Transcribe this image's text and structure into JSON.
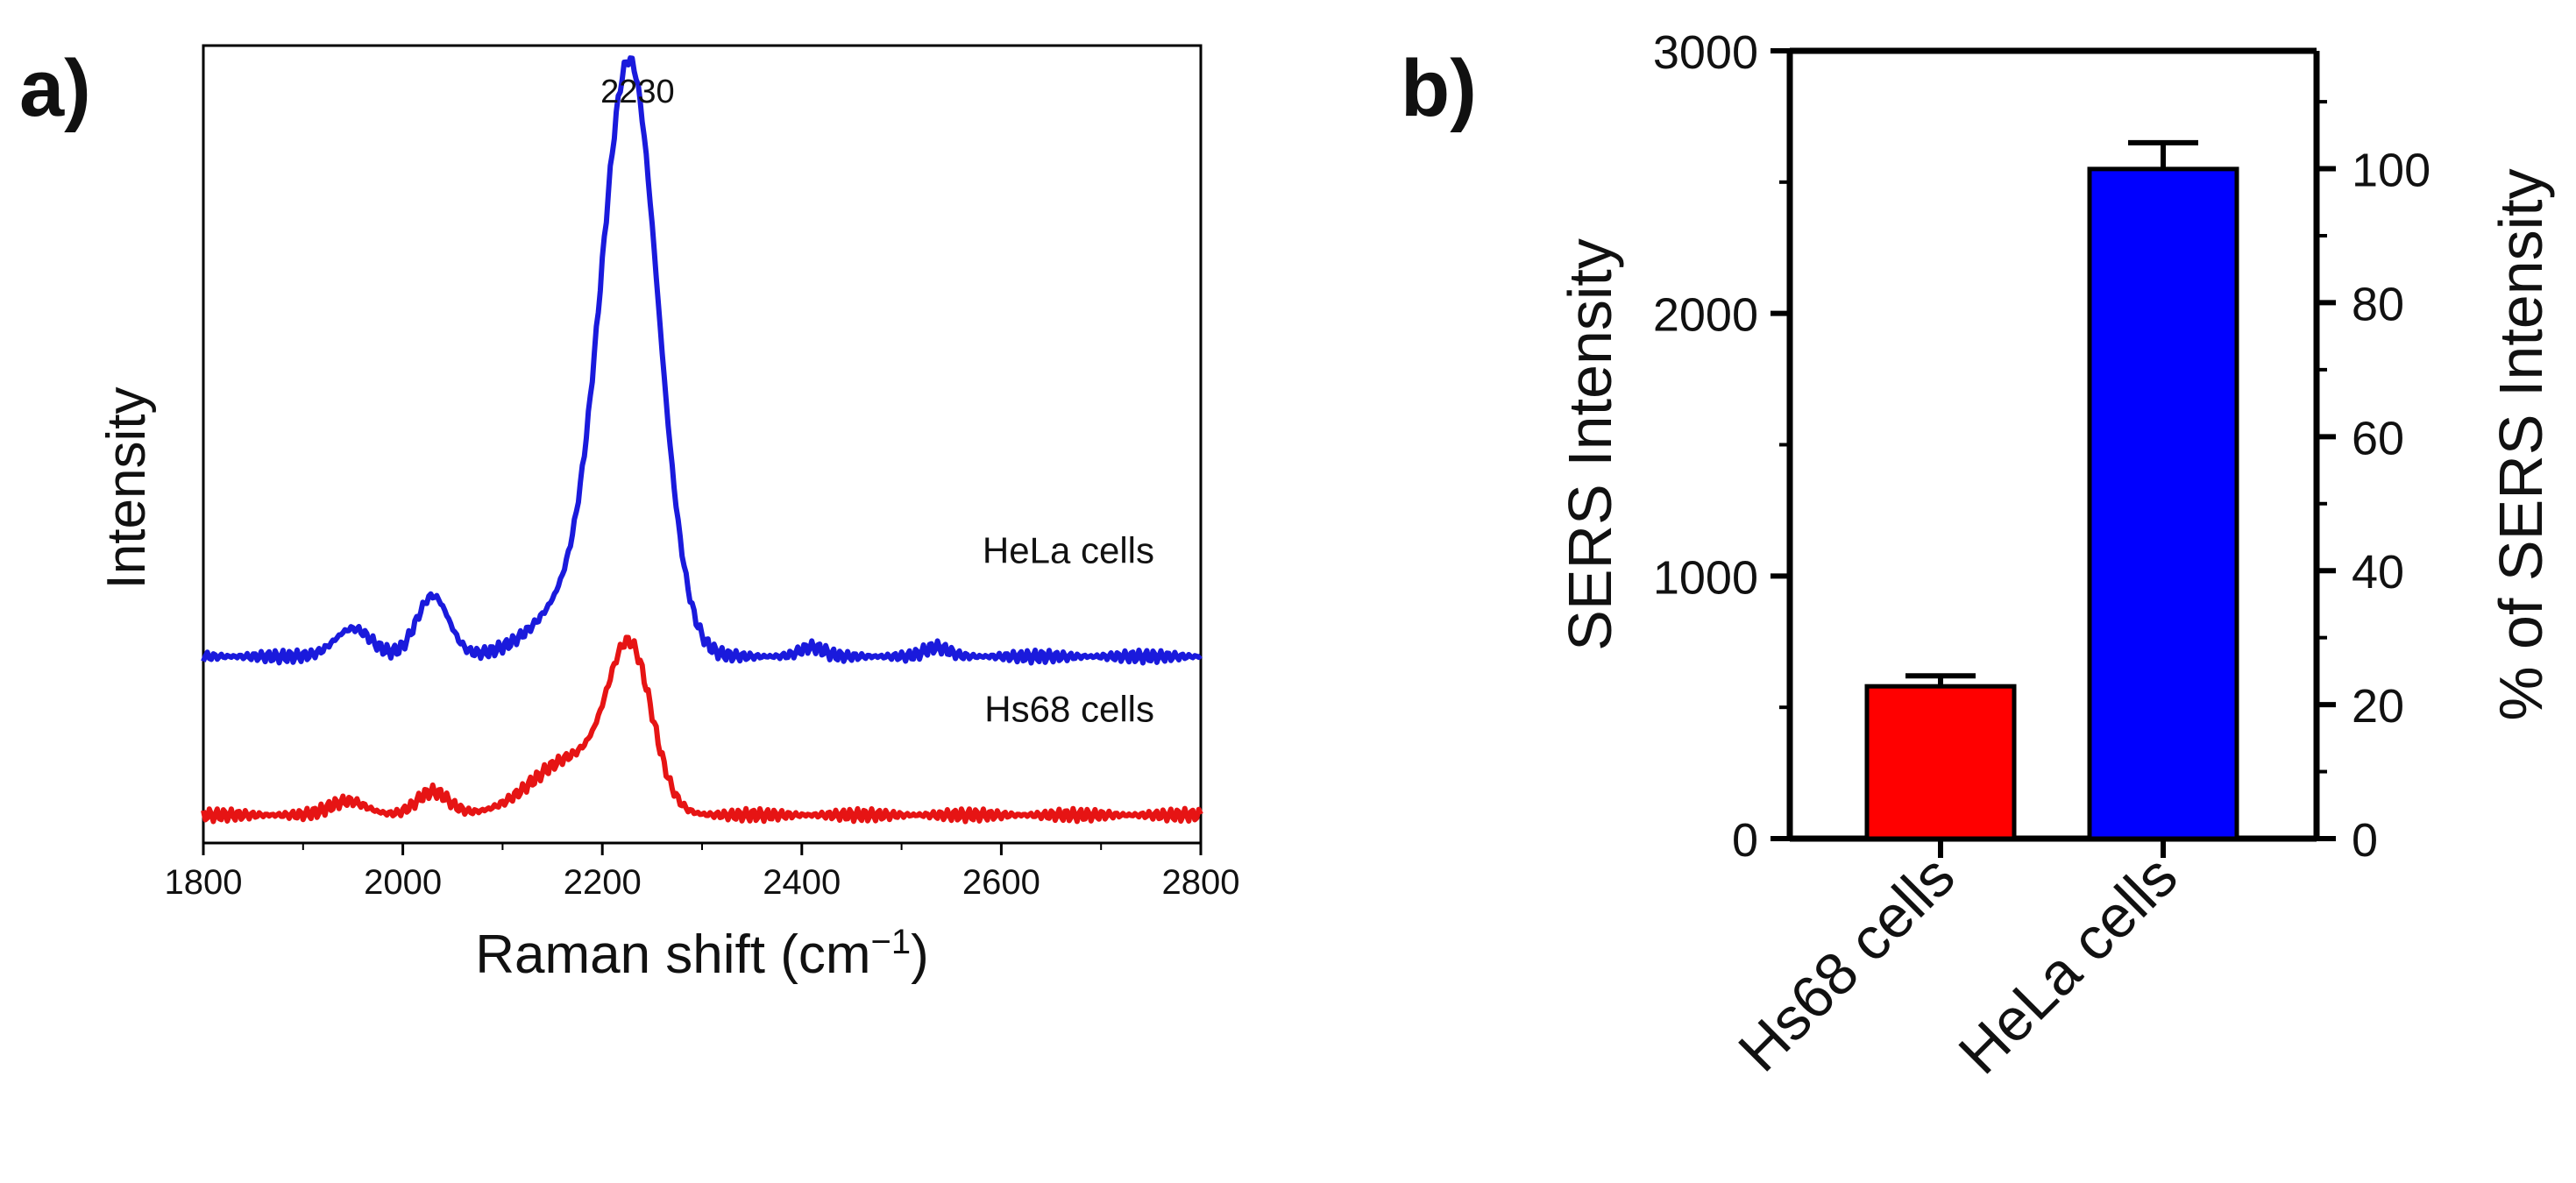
{
  "chart_data": [
    {
      "type": "line",
      "panel_label": "a)",
      "title": "",
      "xlabel": "Raman shift (cm",
      "xlabel_sup": "−1",
      "xlabel_close": ")",
      "ylabel": "Intensity",
      "xlim": [
        1800,
        2800
      ],
      "yticks_shown": false,
      "xticks": [
        1800,
        2000,
        2200,
        2400,
        2600,
        2800
      ],
      "xtick_labels": [
        "1800",
        "2000",
        "2200",
        "2400",
        "2600",
        "2800"
      ],
      "annotation": {
        "text": "2230",
        "x": 2230
      },
      "colors": {
        "hela": "#1a1adc",
        "hs68": "#e61414"
      },
      "series": [
        {
          "name": "HeLa cells",
          "offset": 0.34,
          "peaks": [
            {
              "center": 2228,
              "height": 1.23,
              "width": 28
            },
            {
              "center": 2175,
              "height": 0.12,
              "width": 40
            },
            {
              "center": 2030,
              "height": 0.13,
              "width": 16
            },
            {
              "center": 1950,
              "height": 0.06,
              "width": 18
            },
            {
              "center": 2410,
              "height": 0.02,
              "width": 12
            },
            {
              "center": 2535,
              "height": 0.02,
              "width": 12
            }
          ]
        },
        {
          "name": "Hs68 cells",
          "offset": 0.0,
          "peaks": [
            {
              "center": 2228,
              "height": 0.33,
              "width": 22
            },
            {
              "center": 2170,
              "height": 0.12,
              "width": 40
            },
            {
              "center": 2030,
              "height": 0.05,
              "width": 16
            },
            {
              "center": 1945,
              "height": 0.03,
              "width": 18
            }
          ]
        }
      ]
    },
    {
      "type": "bar",
      "panel_label": "b)",
      "title": "",
      "categories": [
        "Hs68 cells",
        "HeLa cells"
      ],
      "values": [
        580,
        2550
      ],
      "errors": [
        40,
        100
      ],
      "colors": [
        "#ff0000",
        "#0000ff"
      ],
      "ylabel": "SERS Intensity",
      "ylim": [
        0,
        3000
      ],
      "yticks": [
        0,
        1000,
        2000,
        3000
      ],
      "ylabel_right": "% of SERS Intensity",
      "ylim_right": [
        0,
        117.6
      ],
      "yticks_right": [
        0,
        20,
        40,
        60,
        80,
        100
      ]
    }
  ]
}
